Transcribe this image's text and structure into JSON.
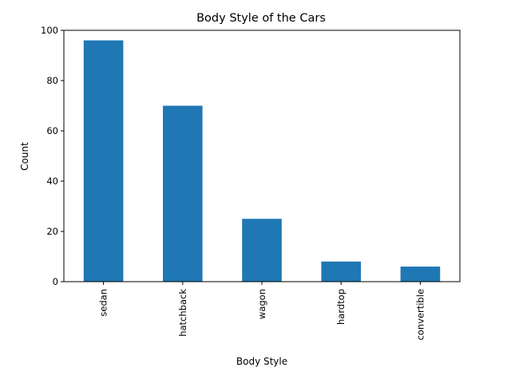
{
  "chart_data": {
    "type": "bar",
    "title": "Body Style of the Cars",
    "xlabel": "Body Style",
    "ylabel": "Count",
    "categories": [
      "sedan",
      "hatchback",
      "wagon",
      "hardtop",
      "convertible"
    ],
    "values": [
      96,
      70,
      25,
      8,
      6
    ],
    "ylim": [
      0,
      100
    ],
    "yticks": [
      0,
      20,
      40,
      60,
      80,
      100
    ],
    "bar_color": "#1f77b4",
    "grid": false,
    "legend": false,
    "x_tick_rotation": "vertical"
  }
}
